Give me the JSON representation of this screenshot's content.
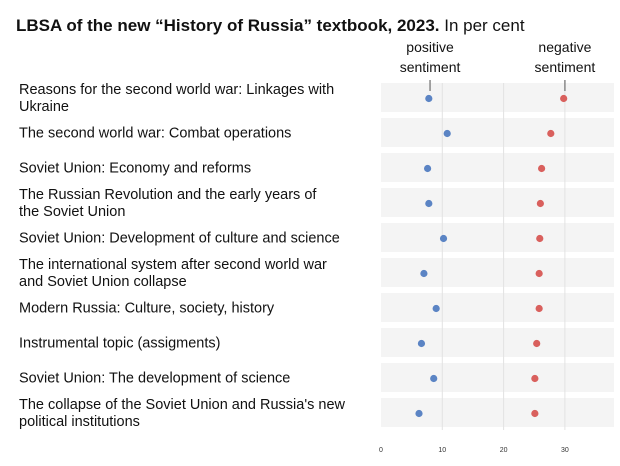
{
  "header": {
    "title_bold": "LBSA of the new “History of Russia” textbook, 2023.",
    "title_rest": " In per cent"
  },
  "chart_data": {
    "type": "scatter",
    "title": "LBSA of the new “History of Russia” textbook, 2023. In per cent",
    "annotations": [
      {
        "lines": [
          "positive",
          "sentiment"
        ],
        "at_value": 8
      },
      {
        "lines": [
          "negative",
          "sentiment"
        ],
        "at_value": 30
      }
    ],
    "categories": [
      [
        "Reasons for the second world war: Linkages with",
        "Ukraine"
      ],
      [
        "The second world war: Combat operations"
      ],
      [
        "Soviet Union: Economy and reforms"
      ],
      [
        "The Russian Revolution and the early years of",
        "the Soviet Union"
      ],
      [
        "Soviet Union: Development of culture and science"
      ],
      [
        "The international system after second world war",
        "and Soviet Union collapse"
      ],
      [
        "Modern Russia: Culture, society, history"
      ],
      [
        "Instrumental topic (assigments)"
      ],
      [
        "Soviet Union: The development of science"
      ],
      [
        "The collapse of the Soviet Union and Russia's new",
        "political institutions"
      ]
    ],
    "series": [
      {
        "key": "positive",
        "color": "#5b84c4",
        "values": [
          7.8,
          10.8,
          7.6,
          7.8,
          10.2,
          7.0,
          9.0,
          6.6,
          8.6,
          6.2
        ]
      },
      {
        "key": "negative",
        "color": "#d9605d",
        "values": [
          29.8,
          27.7,
          26.2,
          26.0,
          25.9,
          25.8,
          25.8,
          25.4,
          25.1,
          25.1
        ]
      }
    ],
    "xlim": [
      0,
      37
    ],
    "xticks": [
      0,
      10,
      20,
      30
    ],
    "grid": true
  }
}
